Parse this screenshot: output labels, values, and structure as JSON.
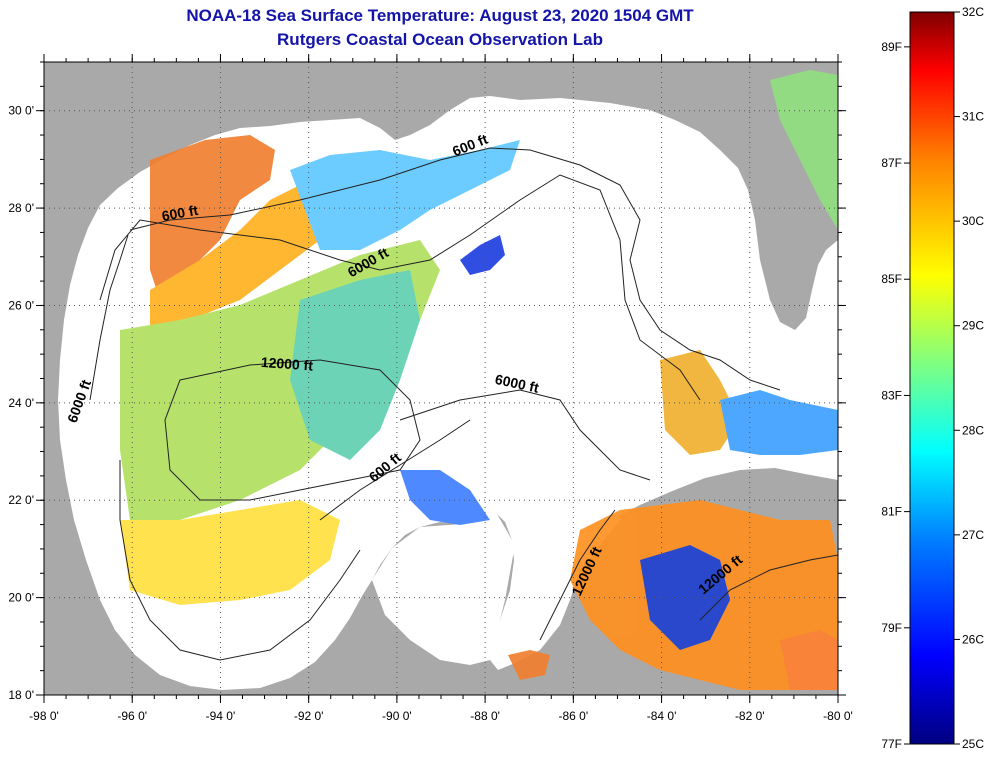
{
  "header": {
    "title": "NOAA-18 Sea Surface Temperature:  August 23, 2020 1504 GMT",
    "subtitle": "Rutgers Coastal Ocean Observation Lab"
  },
  "map": {
    "lon_range": [
      -98,
      -80
    ],
    "lat_range": [
      18,
      31
    ],
    "lon_ticks": [
      "-98 0'",
      "-96 0'",
      "-94 0'",
      "-92 0'",
      "-90 0'",
      "-88 0'",
      "-86 0'",
      "-84 0'",
      "-82 0'",
      "-80 0'"
    ],
    "lat_ticks": [
      "18 0'",
      "20 0'",
      "22 0'",
      "24 0'",
      "26 0'",
      "28 0'",
      "30 0'"
    ],
    "contour_labels": [
      {
        "text": "600 ft",
        "lon": -88.3,
        "lat": 29.2,
        "angle": -22
      },
      {
        "text": "600 ft",
        "lon": -94.9,
        "lat": 27.8,
        "angle": -10
      },
      {
        "text": "6000 ft",
        "lon": -90.6,
        "lat": 26.8,
        "angle": -30
      },
      {
        "text": "12000 ft",
        "lon": -92.5,
        "lat": 24.7,
        "angle": 4
      },
      {
        "text": "6000 ft",
        "lon": -97.1,
        "lat": 24.0,
        "angle": -70
      },
      {
        "text": "6000 ft",
        "lon": -87.3,
        "lat": 24.3,
        "angle": 12
      },
      {
        "text": "600 ft",
        "lon": -90.2,
        "lat": 22.6,
        "angle": -40
      },
      {
        "text": "12000 ft",
        "lon": -85.6,
        "lat": 20.5,
        "angle": -65
      },
      {
        "text": "12000 ft",
        "lon": -82.6,
        "lat": 20.4,
        "angle": -40
      }
    ],
    "colors": {
      "land": "#a9a9a9",
      "no_data": "#ffffff",
      "grid": "#555555"
    }
  },
  "colorbar": {
    "celsius_labels": [
      "32C",
      "31C",
      "30C",
      "29C",
      "28C",
      "27C",
      "26C",
      "25C"
    ],
    "fahrenheit_labels": [
      "89F",
      "87F",
      "85F",
      "83F",
      "81F",
      "79F",
      "77F"
    ],
    "colors": [
      "#000080",
      "#0000ff",
      "#0080ff",
      "#00ffff",
      "#80ff80",
      "#ffff00",
      "#ff8000",
      "#ff0000",
      "#800000"
    ]
  }
}
